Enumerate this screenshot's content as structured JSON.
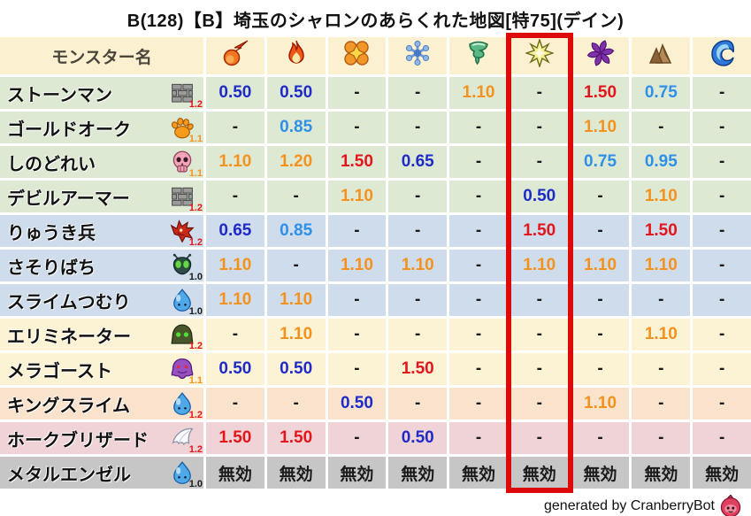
{
  "title": "B(128)【B】埼玉のシャロンのあらくれた地図[特75](デイン)",
  "footer": {
    "credit": "generated by CranberryBot",
    "icon": "cranberry-icon"
  },
  "table": {
    "name_header": "モンスター名",
    "columns": [
      {
        "icon": "fireball-icon"
      },
      {
        "icon": "flame-icon"
      },
      {
        "icon": "explosion-flower-icon"
      },
      {
        "icon": "snowflake-icon"
      },
      {
        "icon": "tornado-icon"
      },
      {
        "icon": "lightning-star-icon"
      },
      {
        "icon": "dark-pinwheel-icon"
      },
      {
        "icon": "mountain-icon"
      },
      {
        "icon": "water-wave-icon"
      }
    ],
    "highlight_column_index": 5,
    "no_effect_label": "無効",
    "rows": [
      {
        "name": "ストーンマン",
        "icon": "brick-icon",
        "multiplier": "1.2",
        "bg": "green",
        "values": [
          "0.50",
          "0.50",
          "-",
          "-",
          "1.10",
          "-",
          "1.50",
          "0.75",
          "-"
        ]
      },
      {
        "name": "ゴールドオーク",
        "icon": "paw-icon",
        "multiplier": "1.1",
        "bg": "green",
        "values": [
          "-",
          "0.85",
          "-",
          "-",
          "-",
          "-",
          "1.10",
          "-",
          "-"
        ]
      },
      {
        "name": "しのどれい",
        "icon": "skull-icon",
        "multiplier": "1.1",
        "bg": "green",
        "values": [
          "1.10",
          "1.20",
          "1.50",
          "0.65",
          "-",
          "-",
          "0.75",
          "0.95",
          "-"
        ]
      },
      {
        "name": "デビルアーマー",
        "icon": "brick-icon",
        "multiplier": "1.2",
        "bg": "green",
        "values": [
          "-",
          "-",
          "1.10",
          "-",
          "-",
          "0.50",
          "-",
          "1.10",
          "-"
        ]
      },
      {
        "name": "りゅうき兵",
        "icon": "dragon-icon",
        "multiplier": "1.2",
        "bg": "blue",
        "values": [
          "0.65",
          "0.85",
          "-",
          "-",
          "-",
          "1.50",
          "-",
          "1.50",
          "-"
        ]
      },
      {
        "name": "さそりばち",
        "icon": "insect-icon",
        "multiplier": "1.0",
        "bg": "blue",
        "values": [
          "1.10",
          "-",
          "1.10",
          "1.10",
          "-",
          "1.10",
          "1.10",
          "1.10",
          "-"
        ]
      },
      {
        "name": "スライムつむり",
        "icon": "slime-icon",
        "multiplier": "1.0",
        "bg": "blue",
        "values": [
          "1.10",
          "1.10",
          "-",
          "-",
          "-",
          "-",
          "-",
          "-",
          "-"
        ]
      },
      {
        "name": "エリミネーター",
        "icon": "eliminator-icon",
        "multiplier": "1.2",
        "bg": "cream",
        "values": [
          "-",
          "1.10",
          "-",
          "-",
          "-",
          "-",
          "-",
          "1.10",
          "-"
        ]
      },
      {
        "name": "メラゴースト",
        "icon": "ghost-icon",
        "multiplier": "1.1",
        "bg": "cream",
        "values": [
          "0.50",
          "0.50",
          "-",
          "1.50",
          "-",
          "-",
          "-",
          "-",
          "-"
        ]
      },
      {
        "name": "キングスライム",
        "icon": "slime-icon",
        "multiplier": "1.2",
        "bg": "peach",
        "values": [
          "-",
          "-",
          "0.50",
          "-",
          "-",
          "-",
          "1.10",
          "-",
          "-"
        ]
      },
      {
        "name": "ホークブリザード",
        "icon": "wing-icon",
        "multiplier": "1.2",
        "bg": "pink",
        "values": [
          "1.50",
          "1.50",
          "-",
          "0.50",
          "-",
          "-",
          "-",
          "-",
          "-"
        ]
      },
      {
        "name": "メタルエンゼル",
        "icon": "slime-icon",
        "multiplier": "1.0",
        "bg": "gray",
        "values": [
          "無効",
          "無効",
          "無効",
          "無効",
          "無効",
          "無効",
          "無効",
          "無効",
          "無効"
        ]
      }
    ]
  },
  "palette": {
    "header_bg": "#FBF0CF",
    "header_text": "#4A463C",
    "green": "#DEE9D4",
    "blue": "#CEDCEB",
    "cream": "#FCF2D4",
    "peach": "#F9E3CD",
    "pink": "#F0D3D6",
    "gray": "#C6C6C6",
    "value_strong_resist": "#1E2BC8",
    "value_resist": "#2E90E8",
    "value_weak": "#F5921D",
    "value_very_weak": "#E4151B",
    "value_neutral": "#1A1A1A",
    "mult_1_2": "#E4151B",
    "mult_1_1": "#F5921D",
    "mult_1_0": "#1A1A1A",
    "highlight_border": "#DE0A0A"
  }
}
